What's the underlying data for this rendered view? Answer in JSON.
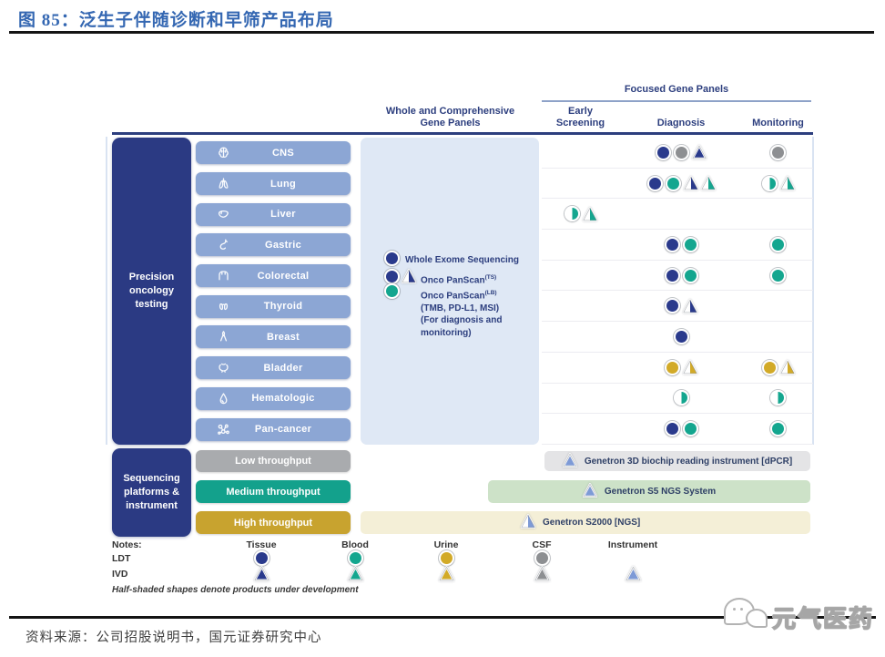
{
  "header": {
    "title": "图 85：泛生子伴随诊断和早筛产品布局"
  },
  "columns": {
    "focused": "Focused Gene Panels",
    "whole": "Whole and Comprehensive\nGene Panels",
    "early": "Early\nScreening",
    "diagnosis": "Diagnosis",
    "monitoring": "Monitoring"
  },
  "sidebar": {
    "oncology": "Precision\noncology\ntesting",
    "platforms": "Sequencing\nplatforms &\ninstrument"
  },
  "categories": [
    {
      "label": "CNS",
      "icon": "brain-icon",
      "early": [],
      "diagnosis": [
        "circle:navy",
        "circle:gray",
        "triangle:navy"
      ],
      "monitoring": [
        "circle:gray"
      ]
    },
    {
      "label": "Lung",
      "icon": "lungs-icon",
      "early": [],
      "diagnosis": [
        "circle:navy",
        "circle:teal",
        "triangle:navy:half",
        "triangle:teal:half"
      ],
      "monitoring": [
        "circle:teal:half",
        "triangle:teal:half"
      ]
    },
    {
      "label": "Liver",
      "icon": "liver-icon",
      "early": [
        "circle:teal:half",
        "triangle:teal:half"
      ],
      "diagnosis": [],
      "monitoring": []
    },
    {
      "label": "Gastric",
      "icon": "stomach-icon",
      "early": [],
      "diagnosis": [
        "circle:navy",
        "circle:teal"
      ],
      "monitoring": [
        "circle:teal"
      ]
    },
    {
      "label": "Colorectal",
      "icon": "colon-icon",
      "early": [],
      "diagnosis": [
        "circle:navy",
        "circle:teal"
      ],
      "monitoring": [
        "circle:teal"
      ]
    },
    {
      "label": "Thyroid",
      "icon": "thyroid-icon",
      "early": [],
      "diagnosis": [
        "circle:navy",
        "triangle:navy:half"
      ],
      "monitoring": []
    },
    {
      "label": "Breast",
      "icon": "ribbon-icon",
      "early": [],
      "diagnosis": [
        "circle:navy"
      ],
      "monitoring": []
    },
    {
      "label": "Bladder",
      "icon": "bladder-icon",
      "early": [],
      "diagnosis": [
        "circle:gold",
        "triangle:gold:half"
      ],
      "monitoring": [
        "circle:gold",
        "triangle:gold:half"
      ]
    },
    {
      "label": "Hematologic",
      "icon": "drop-icon",
      "early": [],
      "diagnosis": [
        "circle:teal:half"
      ],
      "monitoring": [
        "circle:teal:half"
      ]
    },
    {
      "label": "Pan-cancer",
      "icon": "molecule-icon",
      "early": [],
      "diagnosis": [
        "circle:navy",
        "circle:teal"
      ],
      "monitoring": [
        "circle:teal"
      ]
    }
  ],
  "panel": {
    "wes_label": "Whole Exome Sequencing",
    "onco_line1": "Onco PanScan",
    "onco_line1_sup": "(TS)",
    "onco_line2": "Onco PanScan",
    "onco_line2_sup": "(LB)",
    "onco_line3": "(TMB, PD-L1, MSI)",
    "onco_line4": "(For diagnosis and",
    "onco_line5": "monitoring)"
  },
  "throughput": [
    {
      "label": "Low throughput",
      "color": "#a9abae"
    },
    {
      "label": "Medium throughput",
      "color": "#13a18c"
    },
    {
      "label": "High throughput",
      "color": "#c8a32f"
    }
  ],
  "instruments": [
    {
      "label": "Genetron 3D biochip reading instrument [dPCR]",
      "marker": "triangle:ltblue",
      "bg": "#e4e4e6"
    },
    {
      "label": "Genetron S5 NGS System",
      "marker": "triangle:ltblue",
      "bg": "#cde2c8"
    },
    {
      "label": "Genetron S2000 [NGS]",
      "marker": "triangle:ltblue:half",
      "bg": "#f4efd7"
    }
  ],
  "legend": {
    "notes_label": "Notes:",
    "ldt_label": "LDT",
    "ivd_label": "IVD",
    "columns": [
      {
        "label": "Tissue",
        "ldt": "circle:navy",
        "ivd": "triangle:navy"
      },
      {
        "label": "Blood",
        "ldt": "circle:teal",
        "ivd": "triangle:teal"
      },
      {
        "label": "Urine",
        "ldt": "circle:gold",
        "ivd": "triangle:gold"
      },
      {
        "label": "CSF",
        "ldt": "circle:gray",
        "ivd": "triangle:gray"
      },
      {
        "label": "Instrument",
        "ldt": null,
        "ivd": "triangle:ltblue"
      }
    ],
    "note": "Half-shaded shapes denote products under development"
  },
  "footer": {
    "source": "资料来源：公司招股说明书，国元证券研究中心",
    "watermark": "元气医药"
  },
  "colors": {
    "title_blue": "#3467b2",
    "header_blue": "#2c3e7e",
    "sidebar_navy": "#2b3a83",
    "category_blue": "#8ca6d4",
    "panel_blue": "#dfe8f5",
    "markers": {
      "navy": "#2a3a8c",
      "teal": "#14a68f",
      "gold": "#d2aa28",
      "gray": "#8d8f92",
      "ltblue": "#7e9ad6"
    }
  }
}
